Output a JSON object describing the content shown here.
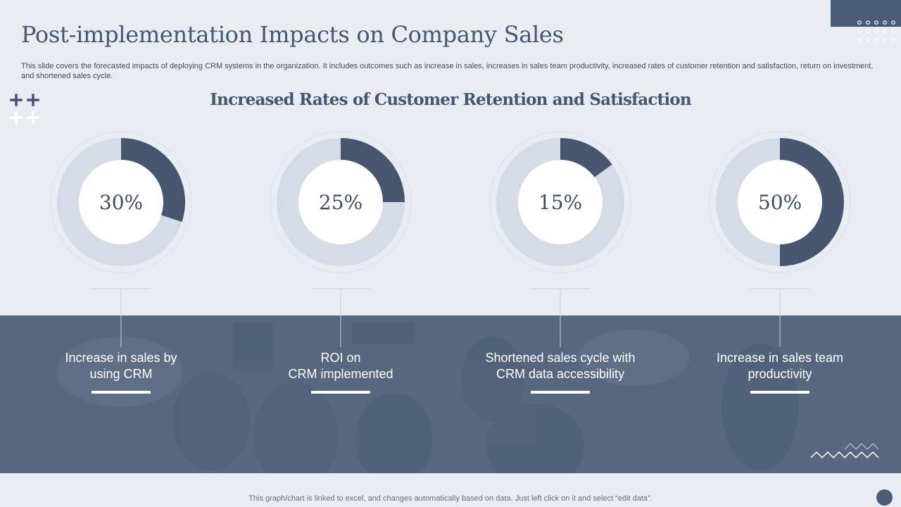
{
  "slide": {
    "title": "Post-implementation Impacts on Company Sales",
    "description": "This slide covers the forecasted impacts of deploying CRM systems in the organization. It includes outcomes such as increase in sales, increases in sales team productivity, increased rates of customer retention and satisfaction, return on investment, and shortened sales cycle.",
    "footer": "This graph/chart is linked to excel,  and changes automatically based on data. Just left click on it and select “edit data”."
  },
  "chart_data": {
    "type": "pie",
    "title": "Increased Rates of Customer Retention and Satisfaction",
    "unit": "%",
    "items": [
      {
        "label": "Increase in sales by\nusing CRM",
        "value": 30,
        "value_label": "30%"
      },
      {
        "label": "ROI on\nCRM implemented",
        "value": 25,
        "value_label": "25%"
      },
      {
        "label": "Shortened sales cycle with\nCRM data accessibility",
        "value": 15,
        "value_label": "15%"
      },
      {
        "label": "Increase in sales team\nproductivity",
        "value": 50,
        "value_label": "50%"
      }
    ]
  },
  "colors": {
    "accent": "#46566f",
    "donut_fill": "#46566f",
    "donut_track": "#d6dce6",
    "band": "#56677f"
  }
}
